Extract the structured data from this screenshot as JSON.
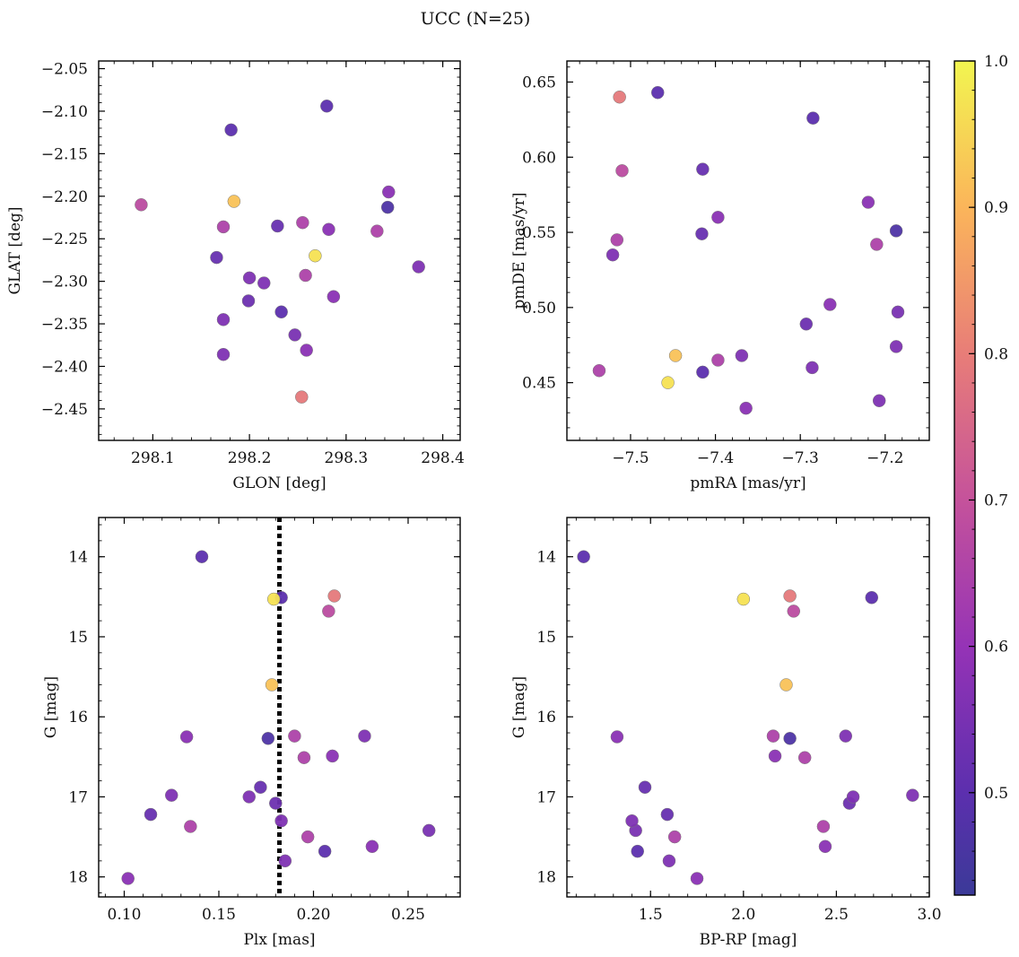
{
  "figure": {
    "title": "UCC (N=25)"
  },
  "colormap": {
    "name": "plasma",
    "min": 0.43,
    "max": 1.0,
    "ticks": [
      0.5,
      0.6,
      0.7,
      0.8,
      0.9,
      1.0
    ],
    "tick_labels": [
      "0.5",
      "0.6",
      "0.7",
      "0.8",
      "0.9",
      "1.0"
    ]
  },
  "stars": [
    {
      "glon": 298.28,
      "glat": -2.094,
      "pmra": -7.285,
      "pmde": 0.626,
      "plx": 0.141,
      "g": 14.0,
      "bprp": 1.14,
      "p": 0.5
    },
    {
      "glon": 298.181,
      "glat": -2.122,
      "pmra": -7.468,
      "pmde": 0.643,
      "plx": 0.183,
      "g": 14.51,
      "bprp": 2.69,
      "p": 0.5
    },
    {
      "glon": 298.088,
      "glat": -2.21,
      "pmra": -7.51,
      "pmde": 0.591,
      "plx": 0.208,
      "g": 14.68,
      "bprp": 2.27,
      "p": 0.68
    },
    {
      "glon": 298.184,
      "glat": -2.206,
      "pmra": -7.447,
      "pmde": 0.468,
      "plx": 0.178,
      "g": 15.6,
      "bprp": 2.23,
      "p": 0.92
    },
    {
      "glon": 298.254,
      "glat": -2.436,
      "pmra": -7.513,
      "pmde": 0.64,
      "plx": 0.211,
      "g": 14.49,
      "bprp": 2.25,
      "p": 0.79
    },
    {
      "glon": 298.268,
      "glat": -2.27,
      "pmra": -7.456,
      "pmde": 0.45,
      "plx": 0.179,
      "g": 14.53,
      "bprp": 2.0,
      "p": 0.97
    },
    {
      "glon": 298.344,
      "glat": -2.195,
      "pmra": -7.22,
      "pmde": 0.57,
      "plx": 0.133,
      "g": 16.25,
      "bprp": 1.32,
      "p": 0.58
    },
    {
      "glon": 298.343,
      "glat": -2.213,
      "pmra": -7.187,
      "pmde": 0.551,
      "plx": 0.176,
      "g": 16.27,
      "bprp": 2.25,
      "p": 0.47
    },
    {
      "glon": 298.375,
      "glat": -2.283,
      "pmra": -7.187,
      "pmde": 0.474,
      "plx": 0.227,
      "g": 16.24,
      "bprp": 2.55,
      "p": 0.56
    },
    {
      "glon": 298.332,
      "glat": -2.241,
      "pmra": -7.21,
      "pmde": 0.542,
      "plx": 0.195,
      "g": 16.51,
      "bprp": 2.33,
      "p": 0.65
    },
    {
      "glon": 298.255,
      "glat": -2.231,
      "pmra": -7.516,
      "pmde": 0.545,
      "plx": 0.19,
      "g": 16.24,
      "bprp": 2.16,
      "p": 0.65
    },
    {
      "glon": 298.173,
      "glat": -2.236,
      "pmra": -7.537,
      "pmde": 0.458,
      "plx": 0.135,
      "g": 17.37,
      "bprp": 2.43,
      "p": 0.65
    },
    {
      "glon": 298.258,
      "glat": -2.293,
      "pmra": -7.397,
      "pmde": 0.465,
      "plx": 0.197,
      "g": 17.5,
      "bprp": 1.63,
      "p": 0.65
    },
    {
      "glon": 298.229,
      "glat": -2.235,
      "pmra": -7.415,
      "pmde": 0.592,
      "plx": 0.172,
      "g": 16.88,
      "bprp": 1.47,
      "p": 0.52
    },
    {
      "glon": 298.282,
      "glat": -2.239,
      "pmra": -7.397,
      "pmde": 0.56,
      "plx": 0.21,
      "g": 16.49,
      "bprp": 2.17,
      "p": 0.58
    },
    {
      "glon": 298.166,
      "glat": -2.272,
      "pmra": -7.416,
      "pmde": 0.549,
      "plx": 0.114,
      "g": 17.22,
      "bprp": 1.59,
      "p": 0.52
    },
    {
      "glon": 298.2,
      "glat": -2.296,
      "pmra": -7.521,
      "pmde": 0.535,
      "plx": 0.125,
      "g": 16.98,
      "bprp": 2.91,
      "p": 0.56
    },
    {
      "glon": 298.215,
      "glat": -2.302,
      "pmra": -7.369,
      "pmde": 0.468,
      "plx": 0.166,
      "g": 17.0,
      "bprp": 2.59,
      "p": 0.56
    },
    {
      "glon": 298.199,
      "glat": -2.323,
      "pmra": -7.293,
      "pmde": 0.489,
      "plx": 0.18,
      "g": 17.08,
      "bprp": 2.57,
      "p": 0.53
    },
    {
      "glon": 298.233,
      "glat": -2.336,
      "pmra": -7.415,
      "pmde": 0.457,
      "plx": 0.206,
      "g": 17.68,
      "bprp": 1.43,
      "p": 0.5
    },
    {
      "glon": 298.173,
      "glat": -2.345,
      "pmra": -7.286,
      "pmde": 0.46,
      "plx": 0.183,
      "g": 17.3,
      "bprp": 1.4,
      "p": 0.56
    },
    {
      "glon": 298.287,
      "glat": -2.318,
      "pmra": -7.265,
      "pmde": 0.502,
      "plx": 0.231,
      "g": 17.62,
      "bprp": 2.44,
      "p": 0.58
    },
    {
      "glon": 298.247,
      "glat": -2.363,
      "pmra": -7.185,
      "pmde": 0.497,
      "plx": 0.261,
      "g": 17.42,
      "bprp": 1.42,
      "p": 0.55
    },
    {
      "glon": 298.173,
      "glat": -2.386,
      "pmra": -7.207,
      "pmde": 0.438,
      "plx": 0.185,
      "g": 17.8,
      "bprp": 1.6,
      "p": 0.56
    },
    {
      "glon": 298.259,
      "glat": -2.381,
      "pmra": -7.364,
      "pmde": 0.433,
      "plx": 0.102,
      "g": 18.02,
      "bprp": 1.75,
      "p": 0.58
    }
  ],
  "chart_data": [
    {
      "type": "scatter",
      "key": "a",
      "xfield": "glon",
      "yfield": "glat",
      "xlabel": "GLON [deg]",
      "ylabel": "GLAT [deg]",
      "xlim": [
        298.044,
        298.418
      ],
      "ylim": [
        -2.487,
        -2.041
      ],
      "xticks": [
        298.1,
        298.2,
        298.3,
        298.4
      ],
      "xtick_labels": [
        "298.1",
        "298.2",
        "298.3",
        "298.4"
      ],
      "yticks": [
        -2.45,
        -2.4,
        -2.35,
        -2.3,
        -2.25,
        -2.2,
        -2.15,
        -2.1,
        -2.05
      ],
      "ytick_labels": [
        "−2.45",
        "−2.40",
        "−2.35",
        "−2.30",
        "−2.25",
        "−2.20",
        "−2.15",
        "−2.10",
        "−2.05"
      ],
      "grid": false
    },
    {
      "type": "scatter",
      "key": "b",
      "xfield": "pmra",
      "yfield": "pmde",
      "xlabel": "pmRA [mas/yr]",
      "ylabel": "pmDE [mas/yr]",
      "xlim": [
        -7.575,
        -7.148
      ],
      "ylim": [
        0.4116,
        0.664
      ],
      "xticks": [
        -7.5,
        -7.4,
        -7.3,
        -7.2
      ],
      "xtick_labels": [
        "−7.5",
        "−7.4",
        "−7.3",
        "−7.2"
      ],
      "yticks": [
        0.45,
        0.5,
        0.55,
        0.6,
        0.65
      ],
      "ytick_labels": [
        "0.45",
        "0.50",
        "0.55",
        "0.60",
        "0.65"
      ],
      "grid": false
    },
    {
      "type": "scatter",
      "key": "c",
      "xfield": "plx",
      "yfield": "g",
      "xlabel": "Plx [mas]",
      "ylabel": "G [mag]",
      "xlim": [
        0.0865,
        0.2775
      ],
      "ylim": [
        18.25,
        13.51
      ],
      "xticks": [
        0.1,
        0.15,
        0.2,
        0.25
      ],
      "xtick_labels": [
        "0.10",
        "0.15",
        "0.20",
        "0.25"
      ],
      "yticks": [
        14,
        15,
        16,
        17,
        18
      ],
      "ytick_labels": [
        "14",
        "15",
        "16",
        "17",
        "18"
      ],
      "vline": 0.182,
      "grid": false
    },
    {
      "type": "scatter",
      "key": "d",
      "xfield": "bprp",
      "yfield": "g",
      "xlabel": "BP-RP [mag]",
      "ylabel": "G [mag]",
      "xlim": [
        1.05,
        3.0
      ],
      "ylim": [
        18.25,
        13.51
      ],
      "xticks": [
        1.5,
        2.0,
        2.5,
        3.0
      ],
      "xtick_labels": [
        "1.5",
        "2.0",
        "2.5",
        "3.0"
      ],
      "yticks": [
        14,
        15,
        16,
        17,
        18
      ],
      "ytick_labels": [
        "14",
        "15",
        "16",
        "17",
        "18"
      ],
      "grid": false
    }
  ]
}
